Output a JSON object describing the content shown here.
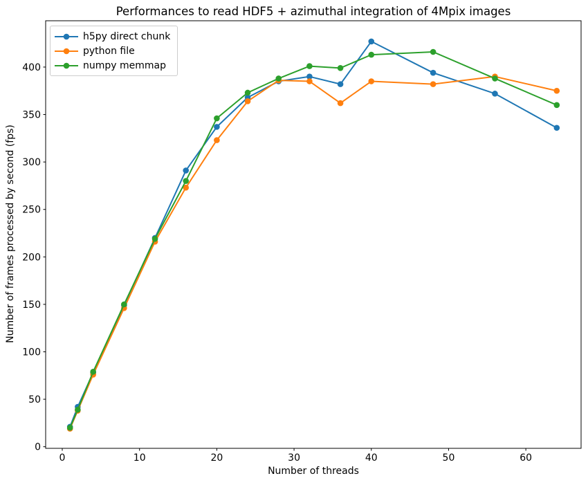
{
  "chart_data": {
    "type": "line",
    "title": "Performances to read HDF5 + azimuthal integration of 4Mpix images",
    "xlabel": "Number of threads",
    "ylabel": "Number of frames processed by second (fps)",
    "x": [
      1,
      2,
      4,
      8,
      12,
      16,
      20,
      24,
      28,
      32,
      36,
      40,
      48,
      56,
      64
    ],
    "series": [
      {
        "name": "h5py direct chunk",
        "color": "#1f77b4",
        "values": [
          21,
          42,
          78,
          149,
          220,
          291,
          337,
          368,
          385,
          390,
          382,
          427,
          394,
          372,
          336
        ]
      },
      {
        "name": "python file",
        "color": "#ff7f0e",
        "values": [
          19,
          38,
          76,
          146,
          216,
          273,
          323,
          364,
          386,
          385,
          362,
          385,
          382,
          390,
          375
        ]
      },
      {
        "name": "numpy memmap",
        "color": "#2ca02c",
        "values": [
          20,
          39,
          79,
          150,
          219,
          280,
          346,
          373,
          388,
          401,
          399,
          413,
          416,
          388,
          360
        ]
      }
    ],
    "xlim": [
      -2.15,
      67.15
    ],
    "ylim": [
      -1.7,
      448.8
    ],
    "xticks": [
      0,
      10,
      20,
      30,
      40,
      50,
      60
    ],
    "yticks": [
      0,
      50,
      100,
      150,
      200,
      250,
      300,
      350,
      400
    ],
    "grid": false,
    "legend_position": "upper left",
    "marker": "o",
    "axis_color": "#000000"
  }
}
